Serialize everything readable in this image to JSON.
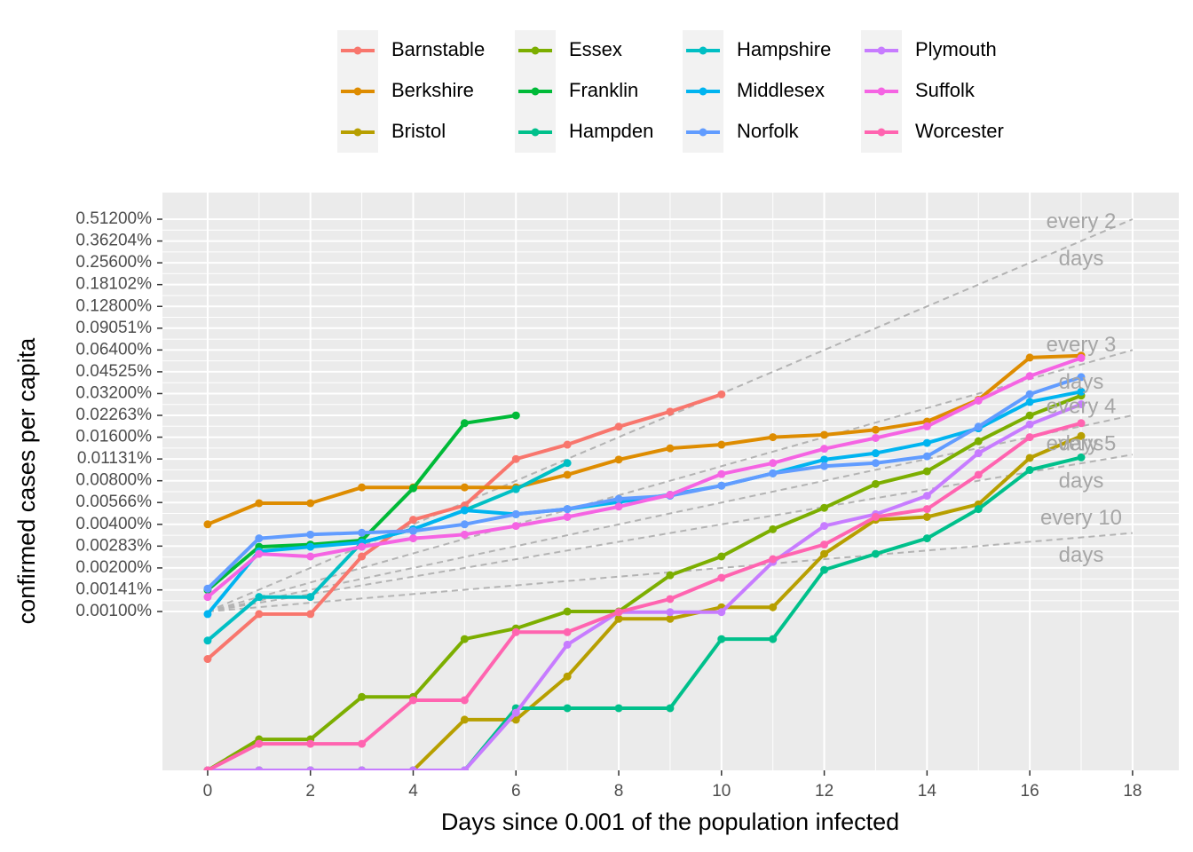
{
  "chart_data": {
    "type": "line",
    "x_label": "Days since 0.001 of the population infected",
    "y_label": "confirmed cases per capita",
    "log_y": true,
    "grid": true,
    "legend_position": "top",
    "x": [
      0,
      1,
      2,
      3,
      4,
      5,
      6,
      7,
      8,
      9,
      10,
      11,
      12,
      13,
      14,
      15,
      16,
      17
    ],
    "xlim": [
      -0.88,
      18.9
    ],
    "xticks": [
      0,
      2,
      4,
      6,
      8,
      10,
      12,
      14,
      16,
      18
    ],
    "ylim": [
      8e-05,
      0.782
    ],
    "yticks": [
      {
        "value": 0.001,
        "label": "0.00100%"
      },
      {
        "value": 0.00141,
        "label": "0.00141%"
      },
      {
        "value": 0.002,
        "label": "0.00200%"
      },
      {
        "value": 0.00283,
        "label": "0.00283%"
      },
      {
        "value": 0.004,
        "label": "0.00400%"
      },
      {
        "value": 0.00566,
        "label": "0.00566%"
      },
      {
        "value": 0.008,
        "label": "0.00800%"
      },
      {
        "value": 0.01131,
        "label": "0.01131%"
      },
      {
        "value": 0.016,
        "label": "0.01600%"
      },
      {
        "value": 0.02263,
        "label": "0.02263%"
      },
      {
        "value": 0.032,
        "label": "0.03200%"
      },
      {
        "value": 0.04525,
        "label": "0.04525%"
      },
      {
        "value": 0.064,
        "label": "0.06400%"
      },
      {
        "value": 0.09051,
        "label": "0.09051%"
      },
      {
        "value": 0.128,
        "label": "0.12800%"
      },
      {
        "value": 0.18102,
        "label": "0.18102%"
      },
      {
        "value": 0.256,
        "label": "0.25600%"
      },
      {
        "value": 0.36204,
        "label": "0.36204%"
      },
      {
        "value": 0.512,
        "label": "0.51200%"
      }
    ],
    "reference_start": 0.001,
    "reference_lines": [
      {
        "doubling_days": 2,
        "label": [
          "every 2",
          "days"
        ]
      },
      {
        "doubling_days": 3,
        "label": [
          "every 3",
          "days"
        ]
      },
      {
        "doubling_days": 4,
        "label": [
          "every 4",
          "days"
        ]
      },
      {
        "doubling_days": 5,
        "label": [
          "every 5",
          "days"
        ]
      },
      {
        "doubling_days": 10,
        "label": [
          "every 10",
          "days"
        ]
      }
    ],
    "series": [
      {
        "name": "Barnstable",
        "color": "#F8766D",
        "values": [
          0.00047,
          0.00096,
          0.00096,
          0.0024,
          0.0043,
          0.0054,
          0.0113,
          0.0142,
          0.0189,
          0.024,
          0.0316,
          null,
          null,
          null,
          null,
          null,
          null,
          null
        ]
      },
      {
        "name": "Berkshire",
        "color": "#DE8C00",
        "values": [
          0.004,
          0.0056,
          0.0056,
          0.0072,
          0.0072,
          0.0072,
          0.0072,
          0.0088,
          0.0112,
          0.0134,
          0.0142,
          0.016,
          0.0166,
          0.018,
          0.0205,
          0.029,
          0.0567,
          0.0585
        ]
      },
      {
        "name": "Bristol",
        "color": "#B79F00",
        "values": [
          8e-05,
          8e-05,
          8e-05,
          8e-05,
          8e-05,
          0.000179,
          0.000179,
          0.000356,
          0.00089,
          0.00089,
          0.00107,
          0.00107,
          0.0025,
          0.0043,
          0.0045,
          0.0055,
          0.0115,
          0.0163
        ]
      },
      {
        "name": "Essex",
        "color": "#7CAE00",
        "values": [
          8e-05,
          0.000131,
          0.000131,
          0.000257,
          0.000257,
          0.000645,
          0.000764,
          0.001,
          0.001,
          0.00178,
          0.0024,
          0.0037,
          0.0052,
          0.0076,
          0.0093,
          0.015,
          0.0226,
          0.031
        ]
      },
      {
        "name": "Franklin",
        "color": "#00BA38",
        "values": [
          0.00141,
          0.0028,
          0.0029,
          0.0031,
          0.0071,
          0.02,
          0.0226,
          null,
          null,
          null,
          null,
          null,
          null,
          null,
          null,
          null,
          null,
          null
        ]
      },
      {
        "name": "Hampden",
        "color": "#00C08B",
        "values": [
          8e-05,
          8e-05,
          8e-05,
          8e-05,
          8e-05,
          8e-05,
          0.000215,
          0.000215,
          0.000215,
          0.000215,
          0.000645,
          0.000645,
          0.00194,
          0.0025,
          0.0032,
          0.0051,
          0.0095,
          0.0116
        ]
      },
      {
        "name": "Hampshire",
        "color": "#00BFC4",
        "values": [
          0.00063,
          0.00126,
          0.00126,
          0.003,
          0.0037,
          0.005,
          0.007,
          0.0106,
          null,
          null,
          null,
          null,
          null,
          null,
          null,
          null,
          null,
          null
        ]
      },
      {
        "name": "Middlesex",
        "color": "#00B4F0",
        "values": [
          0.00096,
          0.0026,
          0.0028,
          0.003,
          0.0037,
          0.005,
          0.0047,
          0.0051,
          0.0057,
          0.0064,
          0.0074,
          0.009,
          0.0112,
          0.0124,
          0.0146,
          0.0184,
          0.028,
          0.033
        ]
      },
      {
        "name": "Norfolk",
        "color": "#619CFF",
        "values": [
          0.00144,
          0.0032,
          0.0034,
          0.0035,
          0.0036,
          0.004,
          0.0047,
          0.0051,
          0.006,
          0.0063,
          0.0074,
          0.009,
          0.0101,
          0.0106,
          0.0118,
          0.0189,
          0.0317,
          0.0416
        ]
      },
      {
        "name": "Plymouth",
        "color": "#C77CFF",
        "values": [
          8e-05,
          8e-05,
          8e-05,
          8e-05,
          8e-05,
          8e-05,
          0.0002,
          0.00059,
          0.00099,
          0.00099,
          0.00099,
          0.0022,
          0.0039,
          0.0047,
          0.0063,
          0.0124,
          0.0196,
          0.027
        ]
      },
      {
        "name": "Suffolk",
        "color": "#F564E3",
        "values": [
          0.00126,
          0.0025,
          0.0024,
          0.0028,
          0.0032,
          0.0034,
          0.0039,
          0.0045,
          0.0053,
          0.0064,
          0.0089,
          0.0106,
          0.0133,
          0.0158,
          0.019,
          0.0286,
          0.0423,
          0.0563
        ]
      },
      {
        "name": "Worcester",
        "color": "#FF64B0",
        "values": [
          8e-05,
          0.000122,
          0.000122,
          0.000122,
          0.000244,
          0.000244,
          0.00072,
          0.00072,
          0.00099,
          0.00122,
          0.00171,
          0.0023,
          0.0029,
          0.0045,
          0.0051,
          0.0088,
          0.016,
          0.02
        ]
      }
    ]
  }
}
